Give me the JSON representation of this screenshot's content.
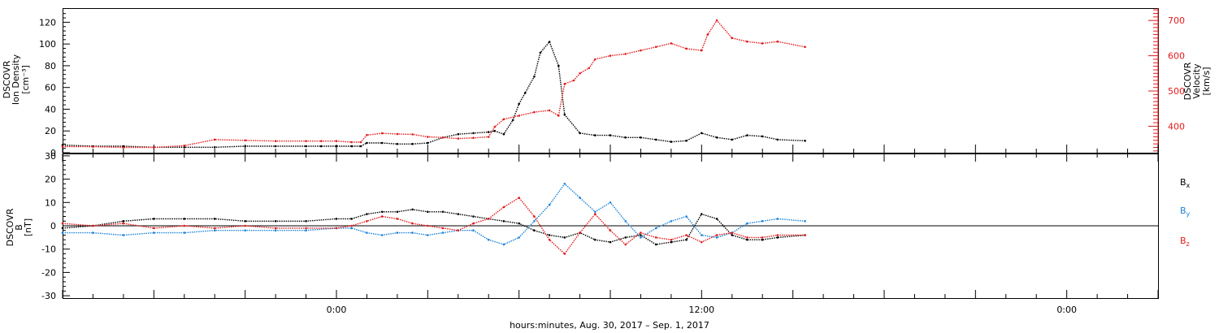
{
  "chart_data": [
    {
      "type": "scatter",
      "panel": "plasma",
      "left_axis_label": [
        "DSCOVR",
        "Ion Density",
        "[cm⁻³]"
      ],
      "right_axis_label": [
        "DSCOVR",
        "Velocity",
        "[km/s]"
      ],
      "left_ylim": [
        0,
        133
      ],
      "right_ylim": [
        325,
        735
      ],
      "left_ticks": [
        "0",
        "20",
        "40",
        "60",
        "80",
        "100",
        "120"
      ],
      "left_tick_values": [
        0,
        20,
        40,
        60,
        80,
        100,
        120
      ],
      "right_ticks": [
        "400",
        "500",
        "600",
        "700"
      ],
      "right_tick_values": [
        400,
        500,
        600,
        700
      ],
      "x_hours_range": [
        -9,
        27
      ],
      "colors": {
        "density": "#000000",
        "velocity": "#e31a1c"
      },
      "series": [
        {
          "name": "Ion Density",
          "axis": "left",
          "x": [
            -9,
            -8,
            -7,
            -6,
            -5,
            -4,
            -3,
            -2,
            -1,
            -0.5,
            0,
            0.5,
            0.8,
            1.0,
            1.5,
            2,
            2.5,
            3,
            3.5,
            4,
            4.5,
            5,
            5.2,
            5.5,
            5.8,
            6.0,
            6.2,
            6.5,
            6.7,
            7.0,
            7.3,
            7.5,
            8,
            8.5,
            9,
            9.5,
            10,
            10.5,
            11,
            11.5,
            12,
            12.5,
            13,
            13.5,
            14,
            14.5,
            15.4
          ],
          "y": [
            7,
            6,
            6,
            5,
            5,
            5,
            6,
            6,
            6,
            6,
            6,
            6,
            6,
            9,
            9,
            8,
            8,
            9,
            14,
            17,
            18,
            19,
            20,
            17,
            30,
            45,
            55,
            70,
            92,
            102,
            80,
            35,
            18,
            16,
            16,
            14,
            14,
            12,
            10,
            11,
            18,
            14,
            12,
            16,
            15,
            12,
            11
          ]
        },
        {
          "name": "Velocity",
          "axis": "right",
          "x": [
            -9,
            -8,
            -7,
            -6,
            -5,
            -4,
            -3,
            -2,
            -1,
            -0.5,
            0,
            0.5,
            0.8,
            1.0,
            1.5,
            2,
            2.5,
            3,
            3.5,
            4,
            4.5,
            5,
            5.2,
            5.5,
            6.0,
            6.5,
            7.0,
            7.3,
            7.5,
            7.8,
            8.0,
            8.3,
            8.5,
            9,
            9.5,
            10,
            10.5,
            11,
            11.5,
            12,
            12.2,
            12.5,
            13,
            13.5,
            14,
            14.5,
            15.4
          ],
          "y": [
            342,
            342,
            340,
            340,
            345,
            362,
            360,
            358,
            358,
            358,
            358,
            355,
            355,
            375,
            380,
            378,
            377,
            370,
            368,
            365,
            367,
            370,
            398,
            420,
            430,
            440,
            445,
            430,
            520,
            530,
            550,
            565,
            590,
            600,
            605,
            615,
            625,
            635,
            620,
            615,
            660,
            700,
            650,
            640,
            635,
            640,
            625
          ]
        }
      ]
    },
    {
      "type": "scatter",
      "panel": "magnetic field",
      "left_axis_label": [
        "DSCOVR",
        "B",
        "[nT]"
      ],
      "ylim": [
        -31,
        31
      ],
      "yticks": [
        "-30",
        "-20",
        "-10",
        "0",
        "10",
        "20",
        "30"
      ],
      "ytick_values": [
        -30,
        -20,
        -10,
        0,
        10,
        20,
        30
      ],
      "zero_line": true,
      "legend_placement": "right",
      "series": [
        {
          "name": "Bx",
          "label_main": "B",
          "label_sub": "x",
          "color": "#000000",
          "x": [
            -9,
            -8,
            -7,
            -6,
            -5,
            -4,
            -3,
            -2,
            -1,
            0,
            0.5,
            1.0,
            1.5,
            2,
            2.5,
            3,
            3.5,
            4,
            4.5,
            5,
            5.5,
            6,
            6.5,
            7,
            7.5,
            8,
            8.5,
            9,
            9.5,
            10,
            10.5,
            11,
            11.5,
            12,
            12.5,
            13,
            13.5,
            14,
            14.5,
            15.4
          ],
          "y": [
            -1,
            0,
            2,
            3,
            3,
            3,
            2,
            2,
            2,
            3,
            3,
            5,
            6,
            6,
            7,
            6,
            6,
            5,
            4,
            3,
            2,
            1,
            -2,
            -4,
            -5,
            -3,
            -6,
            -7,
            -5,
            -4,
            -8,
            -7,
            -6,
            5,
            3,
            -4,
            -6,
            -6,
            -5,
            -4
          ]
        },
        {
          "name": "By",
          "label_main": "B",
          "label_sub": "y",
          "color": "#1b83d8",
          "x": [
            -9,
            -8,
            -7,
            -6,
            -5,
            -4,
            -3,
            -2,
            -1,
            0,
            0.5,
            1.0,
            1.5,
            2,
            2.5,
            3,
            3.5,
            4,
            4.5,
            5,
            5.5,
            6,
            6.5,
            7,
            7.5,
            8,
            8.5,
            9,
            9.5,
            10,
            10.5,
            11,
            11.5,
            12,
            12.5,
            13,
            13.5,
            14,
            14.5,
            15.4
          ],
          "y": [
            -3,
            -3,
            -4,
            -3,
            -3,
            -2,
            -2,
            -2,
            -2,
            -1,
            -1,
            -3,
            -4,
            -3,
            -3,
            -4,
            -3,
            -2,
            -2,
            -6,
            -8,
            -5,
            2,
            9,
            18,
            12,
            6,
            10,
            2,
            -5,
            -1,
            2,
            4,
            -4,
            -5,
            -3,
            1,
            2,
            3,
            2
          ]
        },
        {
          "name": "Bz",
          "label_main": "B",
          "label_sub": "z",
          "color": "#e31a1c",
          "x": [
            -9,
            -8,
            -7,
            -6,
            -5,
            -4,
            -3,
            -2,
            -1,
            0,
            0.5,
            1.0,
            1.5,
            2,
            2.5,
            3,
            3.5,
            4,
            4.5,
            5,
            5.5,
            6,
            6.5,
            7,
            7.5,
            8,
            8.5,
            9,
            9.5,
            10,
            10.5,
            11,
            11.5,
            12,
            12.5,
            13,
            13.5,
            14,
            14.5,
            15.4
          ],
          "y": [
            1,
            0,
            1,
            -1,
            0,
            -1,
            0,
            -1,
            -1,
            -1,
            0,
            2,
            4,
            3,
            1,
            0,
            -1,
            -2,
            1,
            3,
            8,
            12,
            4,
            -6,
            -12,
            -3,
            5,
            -2,
            -8,
            -3,
            -5,
            -6,
            -4,
            -7,
            -4,
            -3,
            -5,
            -5,
            -4,
            -4
          ]
        }
      ]
    }
  ],
  "x_axis": {
    "tick_labels": [
      "0:00",
      "12:00",
      "0:00"
    ],
    "tick_hours": [
      0,
      12,
      24
    ],
    "major_step_hours": 3,
    "minor_step_hours": 1,
    "label": "hours:minutes, Aug. 30, 2017 – Sep.  1, 2017"
  }
}
